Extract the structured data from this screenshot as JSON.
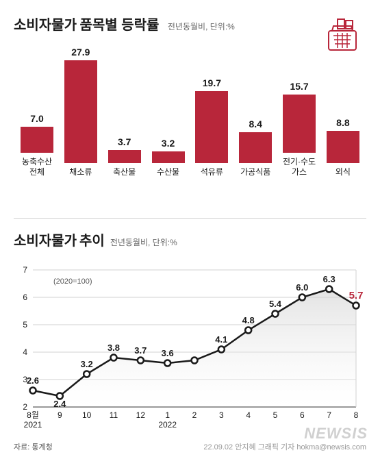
{
  "header": {
    "title_pre": "소비자물가",
    "title_main": "품목별 등락률",
    "subtitle": "전년동월비, 단위:%"
  },
  "bar_chart": {
    "type": "bar",
    "bar_color": "#b8263a",
    "value_fontsize": 14,
    "label_fontsize": 12,
    "max_value": 27.9,
    "items": [
      {
        "label": "농축수산\n전체",
        "value": 7.0
      },
      {
        "label": "채소류",
        "value": 27.9
      },
      {
        "label": "축산물",
        "value": 3.7
      },
      {
        "label": "수산물",
        "value": 3.2
      },
      {
        "label": "석유류",
        "value": 19.7
      },
      {
        "label": "가공식품",
        "value": 8.4
      },
      {
        "label": "전기·수도\n가스",
        "value": 15.7
      },
      {
        "label": "외식",
        "value": 8.8
      }
    ]
  },
  "line_chart": {
    "type": "line",
    "title_pre": "소비자물가",
    "title_main": "추이",
    "subtitle": "전년동월비, 단위:%",
    "index_note": "(2020=100)",
    "ylim": [
      2,
      7
    ],
    "ytick_step": 1,
    "line_color": "#1a1a1a",
    "highlight_color": "#b8263a",
    "marker_fill": "#ffffff",
    "grid_color": "#d0d0d0",
    "points": [
      {
        "x": "8월\n2021",
        "label": "8월",
        "sublabel": "2021",
        "value": 2.6
      },
      {
        "x": "9",
        "label": "9",
        "value": 2.4
      },
      {
        "x": "10",
        "label": "10",
        "value": 3.2
      },
      {
        "x": "11",
        "label": "11",
        "value": 3.8
      },
      {
        "x": "12",
        "label": "12",
        "value": 3.7
      },
      {
        "x": "1\n2022",
        "label": "1",
        "sublabel": "2022",
        "value": 3.6
      },
      {
        "x": "2",
        "label": "2",
        "value": 3.7,
        "hide_label": true
      },
      {
        "x": "3",
        "label": "3",
        "value": 4.1
      },
      {
        "x": "4",
        "label": "4",
        "value": 4.8
      },
      {
        "x": "5",
        "label": "5",
        "value": 5.4
      },
      {
        "x": "6",
        "label": "6",
        "value": 6.0
      },
      {
        "x": "7",
        "label": "7",
        "value": 6.3
      },
      {
        "x": "8",
        "label": "8",
        "value": 5.7,
        "highlight": true
      }
    ]
  },
  "footer": {
    "source": "자료: 통계청",
    "credit": "22.09.02 안지혜 그래픽 기자 hokma@newsis.com",
    "watermark": "NEWSIS"
  }
}
